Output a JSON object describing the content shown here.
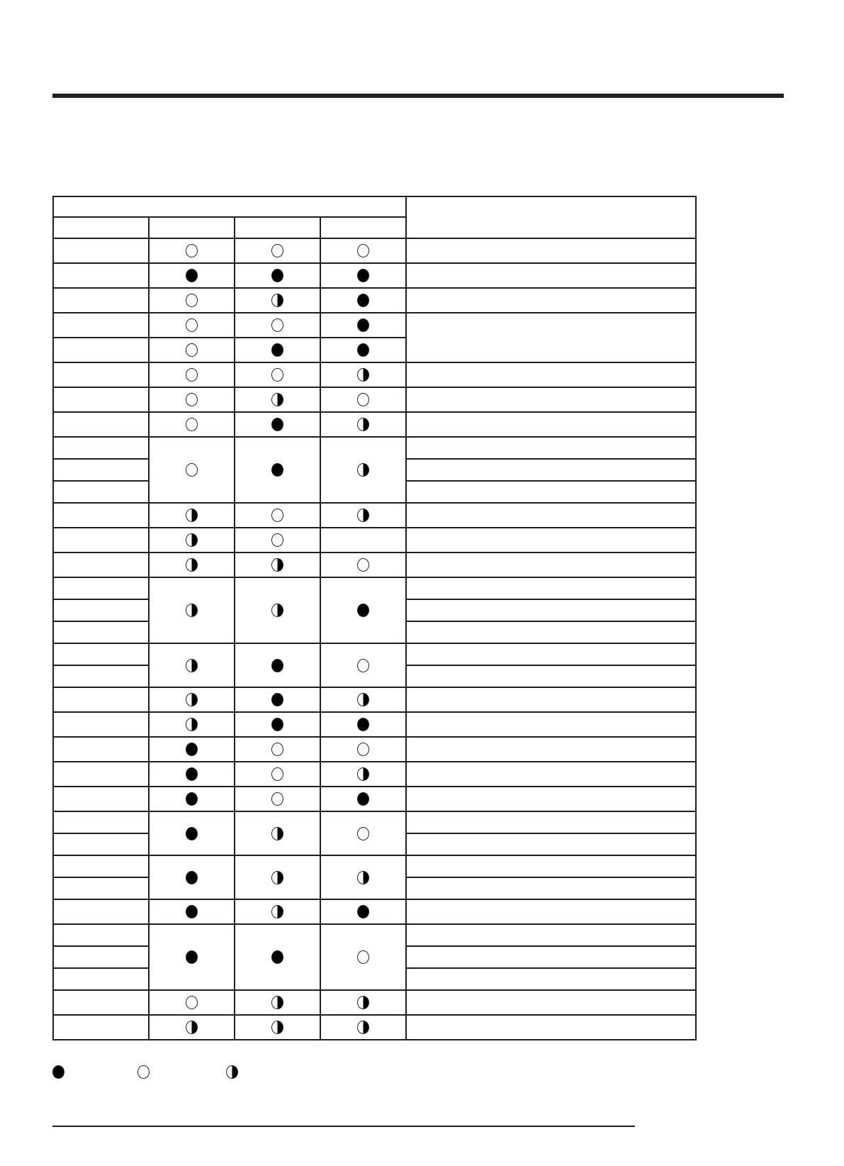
{
  "colors": {
    "ink": "#231f20",
    "filled": "#000000",
    "open": "#ffffff"
  },
  "legend": [
    "filled",
    "open",
    "half"
  ],
  "rows": [
    {
      "sub": 1,
      "marks": [
        "open",
        "open",
        "open"
      ]
    },
    {
      "sub": 1,
      "marks": [
        "filled",
        "filled",
        "filled"
      ]
    },
    {
      "sub": 1,
      "marks": [
        "open",
        "half",
        "filled"
      ]
    },
    {
      "sub": 1,
      "marks": [
        "open",
        "open",
        "filled"
      ],
      "right_span": 2
    },
    {
      "sub": 1,
      "marks": [
        "open",
        "filled",
        "filled"
      ],
      "right_span": 0
    },
    {
      "sub": 1,
      "marks": [
        "open",
        "open",
        "half"
      ]
    },
    {
      "sub": 1,
      "marks": [
        "open",
        "half",
        "open"
      ]
    },
    {
      "sub": 1,
      "marks": [
        "open",
        "filled",
        "half"
      ]
    },
    {
      "sub": 3,
      "marks": [
        "open",
        "filled",
        "half"
      ]
    },
    {
      "sub": 1,
      "marks": [
        "half",
        "open",
        "half"
      ]
    },
    {
      "sub": 1,
      "marks": [
        "half",
        "open",
        ""
      ]
    },
    {
      "sub": 1,
      "marks": [
        "half",
        "half",
        "open"
      ]
    },
    {
      "sub": 3,
      "marks": [
        "half",
        "half",
        "filled"
      ]
    },
    {
      "sub": 2,
      "marks": [
        "half",
        "filled",
        "open"
      ]
    },
    {
      "sub": 1,
      "marks": [
        "half",
        "filled",
        "half"
      ]
    },
    {
      "sub": 1,
      "marks": [
        "half",
        "filled",
        "filled"
      ]
    },
    {
      "sub": 1,
      "marks": [
        "filled",
        "open",
        "open"
      ]
    },
    {
      "sub": 1,
      "marks": [
        "filled",
        "open",
        "half"
      ]
    },
    {
      "sub": 1,
      "marks": [
        "filled",
        "open",
        "filled"
      ]
    },
    {
      "sub": 2,
      "marks": [
        "filled",
        "half",
        "open"
      ]
    },
    {
      "sub": 2,
      "marks": [
        "filled",
        "half",
        "half"
      ]
    },
    {
      "sub": 1,
      "marks": [
        "filled",
        "half",
        "filled"
      ]
    },
    {
      "sub": 3,
      "marks": [
        "filled",
        "filled",
        "open"
      ]
    },
    {
      "sub": 1,
      "marks": [
        "open",
        "half",
        "half"
      ]
    },
    {
      "sub": 1,
      "marks": [
        "half",
        "half",
        "half"
      ]
    }
  ]
}
